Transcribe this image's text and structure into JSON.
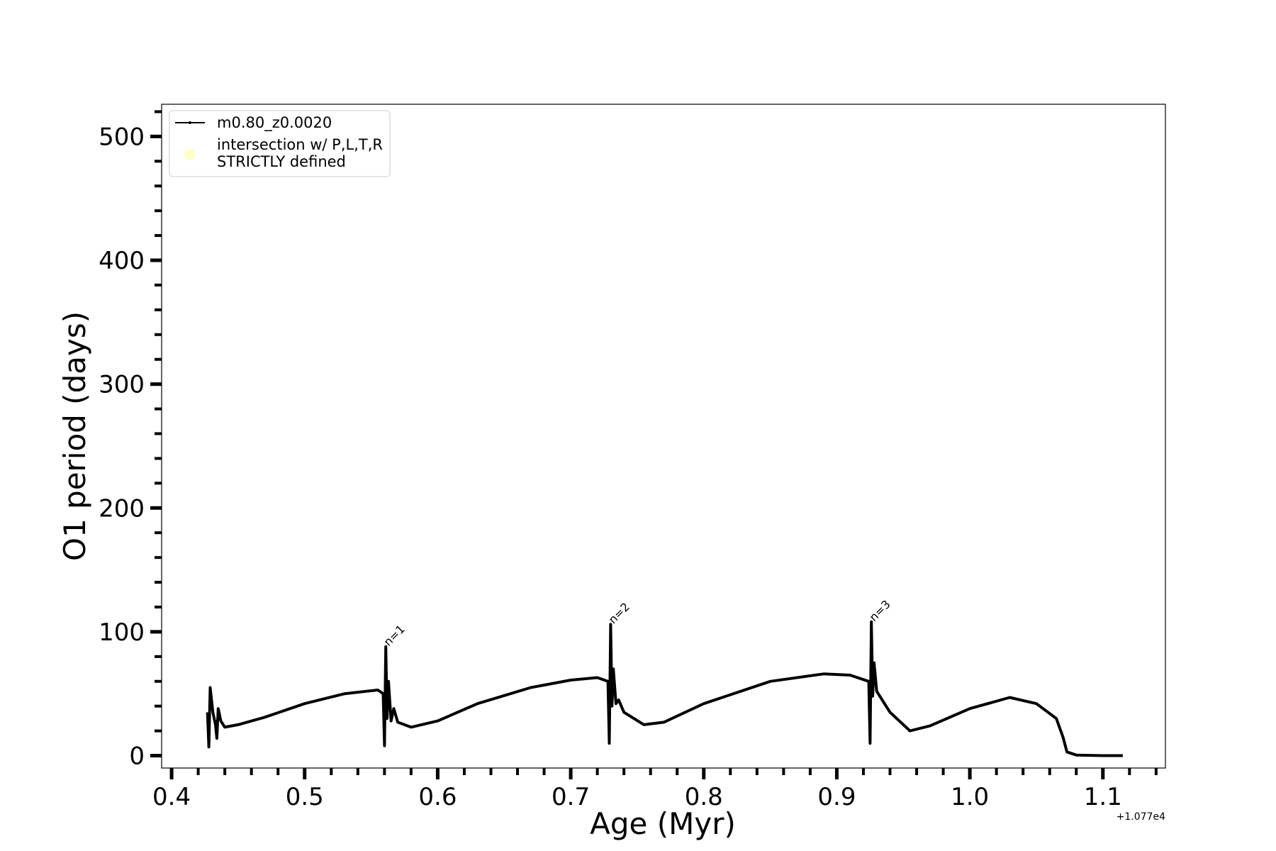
{
  "chart_data": {
    "type": "line",
    "x_label": "Age (Myr)",
    "y_label": "O1 period (days)",
    "x_offset_label": "+1.077e4",
    "xlim": [
      0.3925,
      1.147
    ],
    "ylim": [
      -10,
      526
    ],
    "xticks": [
      0.4,
      0.5,
      0.6,
      0.7,
      0.8,
      0.9,
      {
        "value": 1.0,
        "label": "1.0"
      },
      1.1
    ],
    "yticks": [
      0,
      100,
      200,
      300,
      400,
      500
    ],
    "xminorticks": [
      0.42,
      0.44,
      0.46,
      0.48,
      0.52,
      0.54,
      0.56,
      0.58,
      0.62,
      0.64,
      0.66,
      0.68,
      0.72,
      0.74,
      0.76,
      0.78,
      0.82,
      0.84,
      0.86,
      0.88,
      0.92,
      0.94,
      0.96,
      0.98,
      1.02,
      1.04,
      1.06,
      1.08,
      1.12,
      1.14
    ],
    "yminorticks": [
      20,
      40,
      60,
      80,
      120,
      140,
      160,
      180,
      220,
      240,
      260,
      280,
      320,
      340,
      360,
      380,
      420,
      440,
      460,
      480,
      520
    ],
    "legend": "upper left",
    "series": [
      {
        "name": "m0.80_z0.0020",
        "color": "#000000",
        "x": [
          0.427,
          0.428,
          0.429,
          0.431,
          0.433,
          0.434,
          0.435,
          0.437,
          0.44,
          0.45,
          0.47,
          0.5,
          0.53,
          0.555,
          0.559,
          0.56,
          0.561,
          0.562,
          0.563,
          0.565,
          0.567,
          0.57,
          0.58,
          0.6,
          0.63,
          0.67,
          0.7,
          0.72,
          0.728,
          0.729,
          0.73,
          0.731,
          0.732,
          0.734,
          0.736,
          0.74,
          0.755,
          0.77,
          0.8,
          0.85,
          0.89,
          0.91,
          0.924,
          0.925,
          0.926,
          0.927,
          0.928,
          0.93,
          0.94,
          0.955,
          0.97,
          1.0,
          1.03,
          1.05,
          1.065,
          1.07,
          1.073,
          1.08,
          1.1,
          1.115
        ],
        "values": [
          35,
          7,
          55,
          35,
          25,
          14,
          38,
          28,
          23,
          25,
          31,
          42,
          50,
          53,
          50,
          8,
          88,
          30,
          60,
          28,
          38,
          27,
          23,
          28,
          42,
          55,
          61,
          63,
          60,
          10,
          106,
          40,
          70,
          42,
          45,
          35,
          25,
          27,
          42,
          60,
          66,
          65,
          60,
          10,
          108,
          48,
          75,
          52,
          35,
          20,
          24,
          38,
          47,
          42,
          30,
          15,
          3,
          0.5,
          0,
          0
        ]
      },
      {
        "name": "intersection w/ P,L,T,R\nSTRICTLY defined",
        "color": "#ffffb3",
        "x": [],
        "values": []
      }
    ],
    "annotations": [
      {
        "text": "n=1",
        "x": 0.562,
        "y": 88
      },
      {
        "text": "n=2",
        "x": 0.731,
        "y": 106
      },
      {
        "text": "n=3",
        "x": 0.927,
        "y": 108
      }
    ]
  }
}
